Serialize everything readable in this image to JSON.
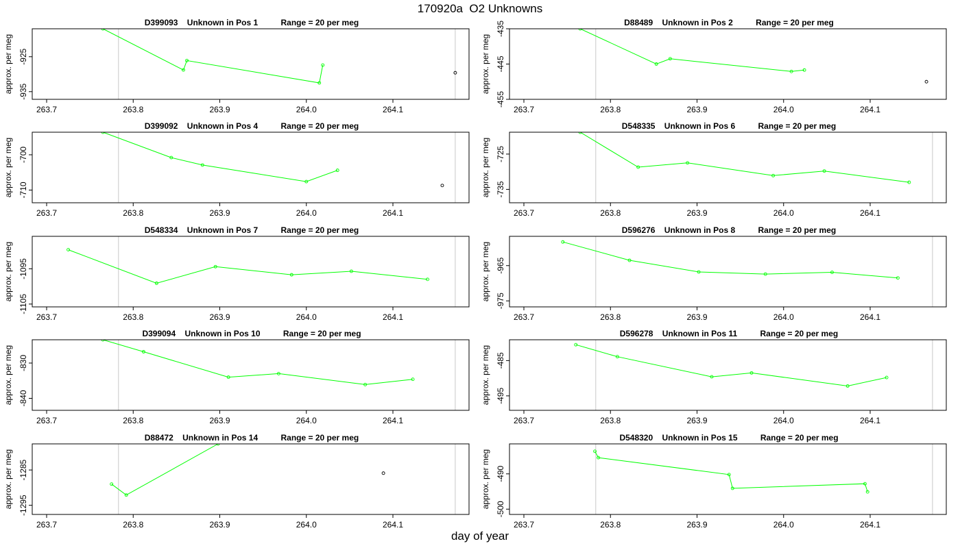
{
  "title": "170920a  O2 Unknowns",
  "xlabel": "day of year",
  "chart_data": [
    {
      "type": "line",
      "id": "D399093",
      "title": "D399093    Unknown in Pos 1          Range = 20 per meg",
      "ylabel": "approx. per meg",
      "xlim": [
        263.68,
        264.19
      ],
      "ylim": [
        -937.2,
        -917.0
      ],
      "yticks": [
        -925,
        -935
      ],
      "xticks": [
        "263.7",
        "263.8",
        "263.9",
        "264.0",
        "264.1"
      ],
      "vlines": [
        263.783,
        264.172
      ],
      "x": [
        263.765,
        263.858,
        263.862,
        264.015,
        264.019
      ],
      "y": [
        -917.0,
        -928.8,
        -926.1,
        -932.5,
        -927.4
      ],
      "isolated": [
        {
          "x": 264.172,
          "y": -929.6
        }
      ]
    },
    {
      "type": "line",
      "id": "D88489",
      "title": "D88489    Unknown in Pos 2          Range = 20 per meg",
      "ylabel": "approx. per meg",
      "xlim": [
        263.68,
        264.19
      ],
      "ylim": [
        -455.0,
        -435.0
      ],
      "yticks": [
        -435,
        -445,
        -455
      ],
      "xticks": [
        "263.7",
        "263.8",
        "263.9",
        "264.0",
        "264.1"
      ],
      "vlines": [
        263.783
      ],
      "x": [
        263.765,
        263.853,
        263.869,
        264.009,
        264.024
      ],
      "y": [
        -435.0,
        -445.0,
        -443.5,
        -447.1,
        -446.7
      ],
      "isolated": [
        {
          "x": 264.165,
          "y": -450.0
        }
      ]
    },
    {
      "type": "line",
      "id": "D399092",
      "title": "D399092    Unknown in Pos 4          Range = 20 per meg",
      "ylabel": "approx. per meg",
      "xlim": [
        263.68,
        264.19
      ],
      "ylim": [
        -713.6,
        -693.6
      ],
      "yticks": [
        -700,
        -710
      ],
      "xticks": [
        "263.7",
        "263.8",
        "263.9",
        "264.0",
        "264.1"
      ],
      "vlines": [
        263.783,
        264.172
      ],
      "x": [
        263.765,
        263.844,
        263.88,
        264.0,
        264.036
      ],
      "y": [
        -693.6,
        -700.8,
        -702.9,
        -707.6,
        -704.4
      ],
      "isolated": [
        {
          "x": 264.157,
          "y": -708.7
        }
      ]
    },
    {
      "type": "line",
      "id": "D548335",
      "title": "D548335    Unknown in Pos 6          Range = 20 per meg",
      "ylabel": "approx. per meg",
      "xlim": [
        263.68,
        264.19
      ],
      "ylim": [
        -738.8,
        -718.8
      ],
      "yticks": [
        -725,
        -735
      ],
      "xticks": [
        "263.7",
        "263.8",
        "263.9",
        "264.0",
        "264.1"
      ],
      "vlines": [
        263.783,
        264.172
      ],
      "x": [
        263.765,
        263.832,
        263.889,
        263.988,
        264.047,
        264.145
      ],
      "y": [
        -718.8,
        -728.7,
        -727.5,
        -731.1,
        -729.8,
        -733.0
      ],
      "isolated": []
    },
    {
      "type": "line",
      "id": "D548334",
      "title": "D548334    Unknown in Pos 7          Range = 20 per meg",
      "ylabel": "approx. per meg",
      "xlim": [
        263.68,
        264.19
      ],
      "ylim": [
        -1105.8,
        -1085.8
      ],
      "yticks": [
        -1095,
        -1105
      ],
      "xticks": [
        "263.7",
        "263.8",
        "263.9",
        "264.0",
        "264.1"
      ],
      "vlines": [
        263.783,
        264.172
      ],
      "x": [
        263.725,
        263.827,
        263.895,
        263.983,
        264.052,
        264.14
      ],
      "y": [
        -1089.6,
        -1099.1,
        -1094.4,
        -1096.7,
        -1095.7,
        -1098.0
      ],
      "isolated": []
    },
    {
      "type": "line",
      "id": "D596276",
      "title": "D596276    Unknown in Pos 8          Range = 20 per meg",
      "ylabel": "approx. per meg",
      "xlim": [
        263.68,
        264.19
      ],
      "ylim": [
        -976.7,
        -956.7
      ],
      "yticks": [
        -965,
        -975
      ],
      "xticks": [
        "263.7",
        "263.8",
        "263.9",
        "264.0",
        "264.1"
      ],
      "vlines": [
        263.783,
        264.172
      ],
      "x": [
        263.745,
        263.822,
        263.902,
        263.979,
        264.056,
        264.132
      ],
      "y": [
        -958.3,
        -963.5,
        -966.8,
        -967.4,
        -966.9,
        -968.5
      ],
      "isolated": []
    },
    {
      "type": "line",
      "id": "D399094",
      "title": "D399094    Unknown in Pos 10          Range = 20 per meg",
      "ylabel": "approx. per meg",
      "xlim": [
        263.68,
        264.19
      ],
      "ylim": [
        -843.4,
        -823.4
      ],
      "yticks": [
        -830,
        -840
      ],
      "xticks": [
        "263.7",
        "263.8",
        "263.9",
        "264.0",
        "264.1"
      ],
      "vlines": [
        263.783,
        264.172
      ],
      "x": [
        263.765,
        263.812,
        263.91,
        263.968,
        264.068,
        264.123
      ],
      "y": [
        -823.4,
        -826.8,
        -834.0,
        -833.0,
        -836.1,
        -834.6
      ],
      "isolated": []
    },
    {
      "type": "line",
      "id": "D596278",
      "title": "D596278    Unknown in Pos 11          Range = 20 per meg",
      "ylabel": "approx. per meg",
      "xlim": [
        263.68,
        264.19
      ],
      "ylim": [
        -499.1,
        -479.1
      ],
      "yticks": [
        -485,
        -495
      ],
      "xticks": [
        "263.7",
        "263.8",
        "263.9",
        "264.0",
        "264.1"
      ],
      "vlines": [
        263.783,
        264.172
      ],
      "x": [
        263.76,
        263.808,
        263.917,
        263.963,
        264.074,
        264.119
      ],
      "y": [
        -480.5,
        -483.9,
        -489.6,
        -488.5,
        -492.2,
        -489.8
      ],
      "isolated": []
    },
    {
      "type": "line",
      "id": "D88472",
      "title": "D88472    Unknown in Pos 14          Range = 20 per meg",
      "ylabel": "approx. per meg",
      "xlim": [
        263.68,
        264.19
      ],
      "ylim": [
        -1297.6,
        -1277.6
      ],
      "yticks": [
        -1285,
        -1295
      ],
      "xticks": [
        "263.7",
        "263.8",
        "263.9",
        "264.0",
        "264.1"
      ],
      "vlines": [
        263.783,
        264.172
      ],
      "x": [
        263.775,
        263.792,
        263.898
      ],
      "y": [
        -1289.0,
        -1292.1,
        -1277.6
      ],
      "isolated": [
        {
          "x": 264.089,
          "y": -1285.9
        }
      ]
    },
    {
      "type": "line",
      "id": "D548320",
      "title": "D548320    Unknown in Pos 15          Range = 20 per meg",
      "ylabel": "approx. per meg",
      "xlim": [
        263.68,
        264.19
      ],
      "ylim": [
        -501.5,
        -481.5
      ],
      "yticks": [
        -490,
        -500
      ],
      "xticks": [
        "263.7",
        "263.8",
        "263.9",
        "264.0",
        "264.1"
      ],
      "vlines": [
        263.783,
        264.172
      ],
      "x": [
        263.782,
        263.786,
        263.937,
        263.941,
        264.094,
        264.097
      ],
      "y": [
        -483.6,
        -485.4,
        -490.2,
        -494.1,
        -492.8,
        -495.1
      ],
      "isolated": []
    }
  ]
}
